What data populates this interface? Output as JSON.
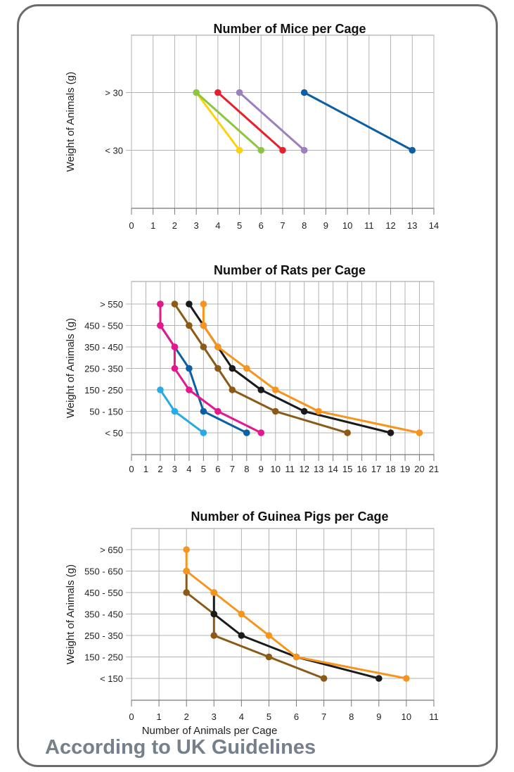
{
  "footer": "According to UK Guidelines",
  "chart_data": [
    {
      "type": "line",
      "title": "Number of Mice per Cage",
      "ylabel": "Weight of Animals (g)",
      "xlabel": "",
      "xlim": [
        0,
        14
      ],
      "xticks": [
        0,
        1,
        2,
        3,
        4,
        5,
        6,
        7,
        8,
        9,
        10,
        11,
        12,
        13,
        14
      ],
      "categories": [
        "> 30",
        "< 30"
      ],
      "series": [
        {
          "color": "#fcd20f",
          "x": [
            3,
            5
          ],
          "y": [
            "> 30",
            "< 30"
          ]
        },
        {
          "color": "#8cc63f",
          "x": [
            3,
            6
          ],
          "y": [
            "> 30",
            "< 30"
          ]
        },
        {
          "color": "#e8202a",
          "x": [
            4,
            7
          ],
          "y": [
            "> 30",
            "< 30"
          ]
        },
        {
          "color": "#9b7fbf",
          "x": [
            5,
            8
          ],
          "y": [
            "> 30",
            "< 30"
          ]
        },
        {
          "color": "#0b5fa5",
          "x": [
            8,
            13
          ],
          "y": [
            "> 30",
            "< 30"
          ]
        }
      ],
      "grid": true
    },
    {
      "type": "line",
      "title": "Number of Rats per Cage",
      "ylabel": "Weight of Animals (g)",
      "xlabel": "",
      "xlim": [
        0,
        21
      ],
      "xticks": [
        0,
        1,
        2,
        3,
        4,
        5,
        6,
        7,
        8,
        9,
        10,
        11,
        12,
        13,
        14,
        15,
        16,
        17,
        18,
        19,
        20,
        21
      ],
      "categories": [
        "> 550",
        "450 - 550",
        "350 - 450",
        "250 - 350",
        "150 - 250",
        "50 - 150",
        "< 50"
      ],
      "series": [
        {
          "color": "#29aae1",
          "x": [
            2,
            3,
            5
          ],
          "y": [
            "150 - 250",
            "50 - 150",
            "< 50"
          ]
        },
        {
          "color": "#0b5fa5",
          "x": [
            2,
            2,
            3,
            4,
            5,
            8
          ],
          "y": [
            "> 550",
            "450 - 550",
            "350 - 450",
            "250 - 350",
            "50 - 150",
            "< 50"
          ]
        },
        {
          "color": "#e5178c",
          "x": [
            2,
            2,
            3,
            3,
            4,
            6,
            9
          ],
          "y": [
            "> 550",
            "450 - 550",
            "350 - 450",
            "250 - 350",
            "150 - 250",
            "50 - 150",
            "< 50"
          ]
        },
        {
          "color": "#8b5a16",
          "x": [
            3,
            4,
            5,
            6,
            7,
            10,
            15
          ],
          "y": [
            "> 550",
            "450 - 550",
            "350 - 450",
            "250 - 350",
            "150 - 250",
            "50 - 150",
            "< 50"
          ]
        },
        {
          "color": "#1a1a1a",
          "x": [
            4,
            5,
            6,
            7,
            9,
            12,
            18
          ],
          "y": [
            "> 550",
            "450 - 550",
            "350 - 450",
            "250 - 350",
            "150 - 250",
            "50 - 150",
            "< 50"
          ]
        },
        {
          "color": "#f7941d",
          "x": [
            5,
            5,
            6,
            8,
            10,
            13,
            20
          ],
          "y": [
            "> 550",
            "450 - 550",
            "350 - 450",
            "250 - 350",
            "150 - 250",
            "50 - 150",
            "< 50"
          ]
        }
      ],
      "grid": true
    },
    {
      "type": "line",
      "title": "Number of Guinea Pigs per Cage",
      "ylabel": "Weight of Animals (g)",
      "xlabel": "Number of Animals per Cage",
      "xlim": [
        0,
        11
      ],
      "xticks": [
        0,
        1,
        2,
        3,
        4,
        5,
        6,
        7,
        8,
        9,
        10,
        11
      ],
      "categories": [
        "> 650",
        "550 - 650",
        "450 - 550",
        "350 - 450",
        "250 - 350",
        "150 - 250",
        "< 150"
      ],
      "series": [
        {
          "color": "#8b5a16",
          "x": [
            2,
            2,
            3,
            3,
            5,
            7
          ],
          "y": [
            "550 - 650",
            "450 - 550",
            "350 - 450",
            "250 - 350",
            "150 - 250",
            "< 150"
          ]
        },
        {
          "color": "#1a1a1a",
          "x": [
            3,
            3,
            4,
            6,
            9
          ],
          "y": [
            "450 - 550",
            "350 - 450",
            "250 - 350",
            "150 - 250",
            "< 150"
          ]
        },
        {
          "color": "#f7941d",
          "x": [
            2,
            2,
            3,
            4,
            5,
            6,
            10
          ],
          "y": [
            "> 650",
            "550 - 650",
            "450 - 550",
            "350 - 450",
            "250 - 350",
            "150 - 250",
            "< 150"
          ]
        }
      ],
      "grid": true
    }
  ]
}
